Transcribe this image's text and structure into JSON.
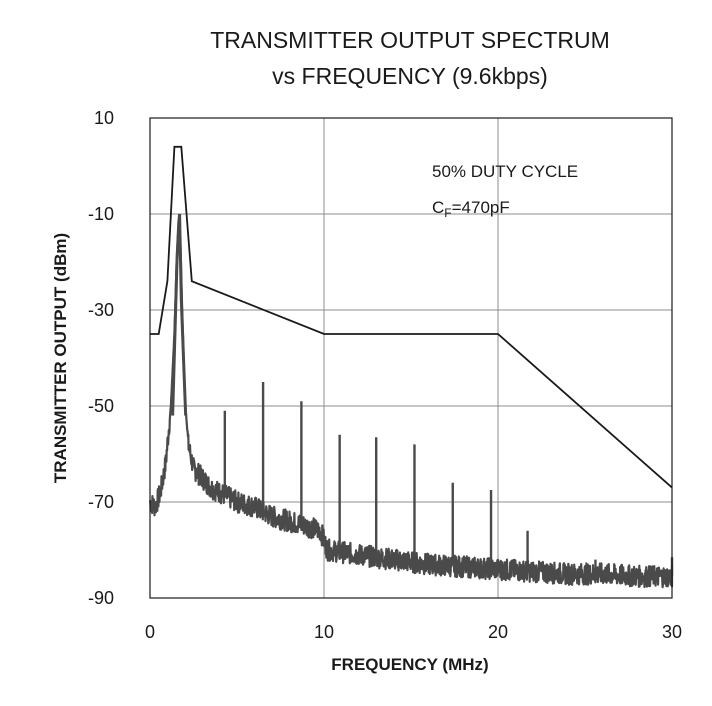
{
  "chart_data": {
    "type": "line",
    "title": "TRANSMITTER OUTPUT SPECTRUM",
    "subtitle": "vs FREQUENCY (9.6kbps)",
    "xlabel": "FREQUENCY (MHz)",
    "ylabel": "TRANSMITTER OUTPUT (dBm)",
    "xlim": [
      0,
      30
    ],
    "ylim": [
      -90,
      10
    ],
    "xticks": [
      0,
      10,
      20,
      30
    ],
    "xtick_labels": [
      "0",
      "10",
      "20",
      "30"
    ],
    "yticks": [
      10,
      -10,
      -30,
      -50,
      -70,
      -90
    ],
    "ytick_labels": [
      "10",
      "-10",
      "-30",
      "-50",
      "-70",
      "-90"
    ],
    "grid": true,
    "annotations": {
      "line1": "50% DUTY CYCLE",
      "cf_symbol": "C",
      "cf_subscript": "F",
      "cf_value": "=470pF"
    },
    "colors": {
      "mask": "#1a1a1a",
      "spectrum": "#4a4a4a",
      "grid": "#8c8c8c"
    },
    "mask_series": {
      "x": [
        0,
        0.5,
        1.0,
        1.4,
        1.8,
        2.4,
        10,
        20,
        30.3
      ],
      "y": [
        -35,
        -35,
        -24,
        4,
        4,
        -24,
        -35,
        -35,
        -67
      ]
    },
    "spectrum_series": {
      "x": [
        0,
        0.3,
        0.6,
        0.9,
        1.2,
        1.4,
        1.55,
        1.65,
        1.75,
        1.85,
        2.0,
        2.2,
        2.5,
        3.0,
        3.5,
        4.0,
        5.0,
        6.0,
        7.0,
        8.0,
        9.0,
        9.8,
        10.2,
        12,
        14,
        16,
        18,
        20,
        22,
        24,
        26,
        28,
        30.3
      ],
      "y": [
        -70,
        -71,
        -68,
        -62,
        -50,
        -35,
        -18,
        -12,
        -16,
        -30,
        -48,
        -58,
        -63,
        -65,
        -67,
        -68,
        -70,
        -71,
        -73,
        -74,
        -75,
        -76,
        -80,
        -81,
        -82,
        -83,
        -83.5,
        -84,
        -84.5,
        -85,
        -85,
        -85.5,
        -85.5
      ]
    },
    "harmonic_spurs": [
      {
        "x": 4.3,
        "top": -51,
        "base": -69
      },
      {
        "x": 6.5,
        "top": -45,
        "base": -71
      },
      {
        "x": 8.7,
        "top": -49,
        "base": -74
      },
      {
        "x": 10.9,
        "top": -56,
        "base": -80
      },
      {
        "x": 13.0,
        "top": -56.5,
        "base": -81
      },
      {
        "x": 15.2,
        "top": -58,
        "base": -82
      },
      {
        "x": 17.4,
        "top": -66,
        "base": -83
      },
      {
        "x": 19.6,
        "top": -67.5,
        "base": -84
      },
      {
        "x": 21.7,
        "top": -76,
        "base": -84.5
      },
      {
        "x": 25.6,
        "top": -82,
        "base": -85
      },
      {
        "x": 30.2,
        "top": -81.5,
        "base": -85.5
      }
    ]
  }
}
